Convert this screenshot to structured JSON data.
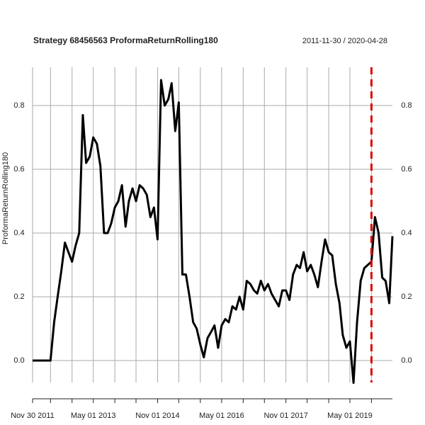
{
  "chart_data": {
    "type": "line",
    "title": "Strategy 68456563 ProformaReturnRolling180",
    "subtitle": "2011-11-30 / 2020-04-28",
    "ylabel": "ProformaReturnRolling180",
    "color": "#000000",
    "x": [
      "2011-11-30",
      "2012-01-01",
      "2012-02-01",
      "2012-03-01",
      "2012-04-01",
      "2012-05-01",
      "2012-06-01",
      "2012-07-01",
      "2012-08-01",
      "2012-09-01",
      "2012-10-01",
      "2012-11-01",
      "2012-12-01",
      "2013-01-01",
      "2013-02-01",
      "2013-03-01",
      "2013-04-01",
      "2013-05-01",
      "2013-06-01",
      "2013-07-01",
      "2013-08-01",
      "2013-09-01",
      "2013-10-01",
      "2013-11-01",
      "2013-12-01",
      "2014-01-01",
      "2014-02-01",
      "2014-03-01",
      "2014-04-01",
      "2014-05-01",
      "2014-06-01",
      "2014-07-01",
      "2014-08-01",
      "2014-09-01",
      "2014-10-01",
      "2014-11-01",
      "2014-12-01",
      "2015-01-01",
      "2015-02-01",
      "2015-03-01",
      "2015-04-01",
      "2015-05-01",
      "2015-06-01",
      "2015-07-01",
      "2015-08-01",
      "2015-09-01",
      "2015-10-01",
      "2015-11-01",
      "2015-12-01",
      "2016-01-01",
      "2016-02-01",
      "2016-03-01",
      "2016-04-01",
      "2016-05-01",
      "2016-06-01",
      "2016-07-01",
      "2016-08-01",
      "2016-09-01",
      "2016-10-01",
      "2016-11-01",
      "2016-12-01",
      "2017-01-01",
      "2017-02-01",
      "2017-03-01",
      "2017-04-01",
      "2017-05-01",
      "2017-06-01",
      "2017-07-01",
      "2017-08-01",
      "2017-09-01",
      "2017-10-01",
      "2017-11-01",
      "2017-12-01",
      "2018-01-01",
      "2018-02-01",
      "2018-03-01",
      "2018-04-01",
      "2018-05-01",
      "2018-06-01",
      "2018-07-01",
      "2018-08-01",
      "2018-09-01",
      "2018-10-01",
      "2018-11-01",
      "2018-12-01",
      "2019-01-01",
      "2019-02-01",
      "2019-03-01",
      "2019-04-01",
      "2019-05-01",
      "2019-06-01",
      "2019-07-01",
      "2019-08-01",
      "2019-09-01",
      "2019-10-01",
      "2019-11-01",
      "2019-12-01",
      "2020-01-01",
      "2020-02-01",
      "2020-03-01",
      "2020-04-01",
      "2020-04-28"
    ],
    "values": [
      0,
      0,
      0,
      0,
      0,
      0,
      0.12,
      0.2,
      0.28,
      0.37,
      0.34,
      0.31,
      0.36,
      0.4,
      0.77,
      0.62,
      0.64,
      0.7,
      0.68,
      0.61,
      0.4,
      0.4,
      0.43,
      0.48,
      0.5,
      0.55,
      0.42,
      0.5,
      0.54,
      0.5,
      0.55,
      0.54,
      0.52,
      0.45,
      0.48,
      0.38,
      0.88,
      0.8,
      0.82,
      0.87,
      0.72,
      0.81,
      0.27,
      0.27,
      0.2,
      0.12,
      0.1,
      0.05,
      0.01,
      0.07,
      0.09,
      0.11,
      0.04,
      0.11,
      0.13,
      0.12,
      0.17,
      0.16,
      0.2,
      0.16,
      0.25,
      0.24,
      0.22,
      0.21,
      0.25,
      0.22,
      0.24,
      0.21,
      0.19,
      0.17,
      0.22,
      0.22,
      0.19,
      0.27,
      0.3,
      0.29,
      0.34,
      0.28,
      0.3,
      0.27,
      0.23,
      0.31,
      0.38,
      0.34,
      0.33,
      0.24,
      0.18,
      0.08,
      0.04,
      0.06,
      -0.07,
      0.12,
      0.25,
      0.29,
      0.3,
      0.31,
      0.45,
      0.4,
      0.26,
      0.25,
      0.18,
      0.39
    ],
    "xlim": [
      "2011-11-30",
      "2020-04-28"
    ],
    "xticks": [
      {
        "value": "2011-11-30",
        "label": "Nov 30 2011"
      },
      {
        "value": "2013-05-01",
        "label": "May 01 2013"
      },
      {
        "value": "2014-11-01",
        "label": "Nov 01 2014"
      },
      {
        "value": "2016-05-01",
        "label": "May 01 2016"
      },
      {
        "value": "2017-11-01",
        "label": "Nov 01 2017"
      },
      {
        "value": "2019-05-01",
        "label": "May 01 2019"
      }
    ],
    "xminorticks": [
      "2012-05-01",
      "2012-11-01",
      "2013-11-01",
      "2014-05-01",
      "2015-05-01",
      "2015-11-01",
      "2016-11-01",
      "2017-05-01",
      "2018-05-01",
      "2018-11-01",
      "2019-11-01"
    ],
    "ylim": [
      -0.069,
      0.92
    ],
    "yticks": [
      {
        "value": 0,
        "label": "0.0"
      },
      0.2,
      0.4,
      0.6,
      0.8
    ],
    "grid": true,
    "vlines": [
      {
        "x": "2019-11-01",
        "color": "#dd0000"
      }
    ]
  }
}
